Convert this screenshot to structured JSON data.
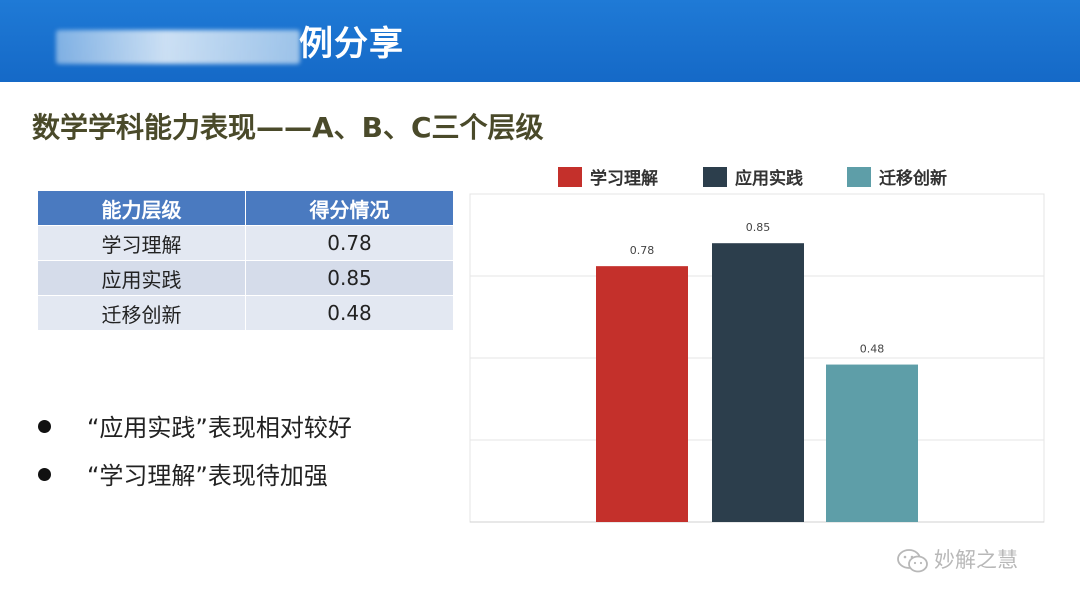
{
  "header": {
    "title": "例分享"
  },
  "section": {
    "title": "数学学科能力表现——A、B、C三个层级"
  },
  "table": {
    "headers": [
      "能力层级",
      "得分情况"
    ],
    "rows": [
      [
        "学习理解",
        "0.78"
      ],
      [
        "应用实践",
        "0.85"
      ],
      [
        "迁移创新",
        "0.48"
      ]
    ]
  },
  "bullets": [
    "“应用实践”表现相对较好",
    "“学习理解”表现待加强"
  ],
  "chart_data": {
    "type": "bar",
    "categories": [
      "学习理解",
      "应用实践",
      "迁移创新"
    ],
    "values": [
      0.78,
      0.85,
      0.48
    ],
    "data_labels": [
      "0.78",
      "0.85",
      "0.48"
    ],
    "colors": [
      "#c4302b",
      "#2c3e4c",
      "#5e9ea8"
    ],
    "legend": [
      "学习理解",
      "应用实践",
      "迁移创新"
    ],
    "legend_position": "top",
    "ylim": [
      0,
      1
    ],
    "grid": true,
    "title": "",
    "xlabel": "",
    "ylabel": ""
  },
  "watermark": {
    "text": "妙解之慧",
    "icon": "wechat-icon"
  },
  "colors": {
    "header_blue": "#1569c7",
    "table_header": "#4a7ac0",
    "table_cell": "#d5dcea",
    "title_text": "#4a4a2a"
  }
}
